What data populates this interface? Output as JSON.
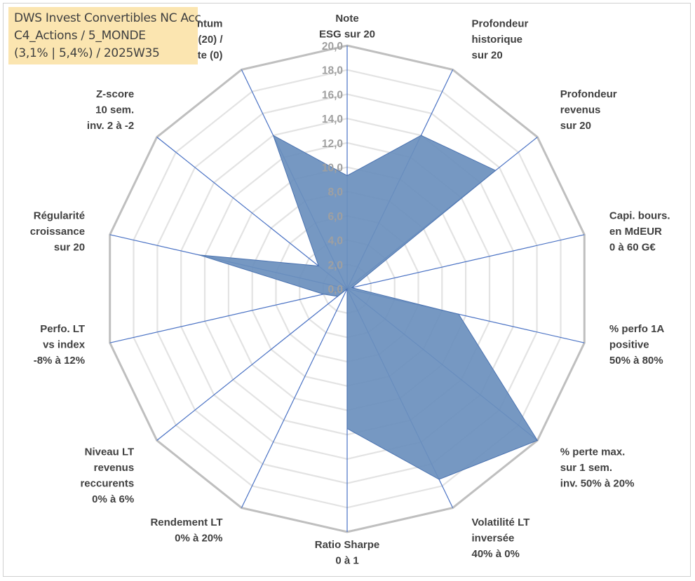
{
  "chart_data": {
    "type": "radar",
    "title_lines": [
      "DWS Invest Convertibles NC Acc",
      "C4_Actions / 5_MONDE",
      "(3,1% | 5,4%) / 2025W35"
    ],
    "rmin": 0,
    "rmax": 20,
    "tick_step": 2,
    "tick_labels": [
      "0,0",
      "2,0",
      "4,0",
      "6,0",
      "8,0",
      "10,0",
      "12,0",
      "14,0",
      "16,0",
      "18,0",
      "20,0"
    ],
    "axes": [
      {
        "label": [
          "Note",
          "ESG sur 20"
        ],
        "value": 9.3
      },
      {
        "label": [
          "Profondeur",
          "historique",
          "sur 20"
        ],
        "value": 14.0
      },
      {
        "label": [
          "Profondeur",
          "revenus",
          "sur 20"
        ],
        "value": 15.6
      },
      {
        "label": [
          "Capi. bours.",
          "en MdEUR",
          "0 à 60 G€"
        ],
        "value": 0.4
      },
      {
        "label": [
          "% perfo 1A",
          "positive",
          "50% à 80%"
        ],
        "value": 9.4
      },
      {
        "label": [
          "% perte max.",
          "sur 1 sem.",
          "inv. 50% à 20%"
        ],
        "value": 20.0
      },
      {
        "label": [
          "Volatilité LT",
          "inversée",
          "40% à 0%"
        ],
        "value": 17.4
      },
      {
        "label": [
          "Ratio Sharpe",
          "0 à 1"
        ],
        "value": 11.5
      },
      {
        "label": [
          "Rendement LT",
          "0% à 20%"
        ],
        "value": 0.0
      },
      {
        "label": [
          "Niveau LT",
          "revenus",
          "reccurents",
          "0% à 6%"
        ],
        "value": 1.0
      },
      {
        "label": [
          "Perfo. LT",
          "vs index",
          "-8% à 12%"
        ],
        "value": 2.0
      },
      {
        "label": [
          "Régularité",
          "croissance",
          "sur 20"
        ],
        "value": 12.5
      },
      {
        "label": [
          "Z-score",
          "10 sem.",
          "inv. 2 à -2"
        ],
        "value": 3.0
      },
      {
        "label": [
          "Momentum",
          "Achat (20) /",
          "Vente (0)"
        ],
        "value": 14.0
      }
    ],
    "colors": {
      "fill": "#6a8fbd",
      "stroke": "#4a72b0",
      "spoke": "#4a72c4",
      "grid": "#bfbfbf",
      "ring": "#e3e3e3"
    }
  }
}
